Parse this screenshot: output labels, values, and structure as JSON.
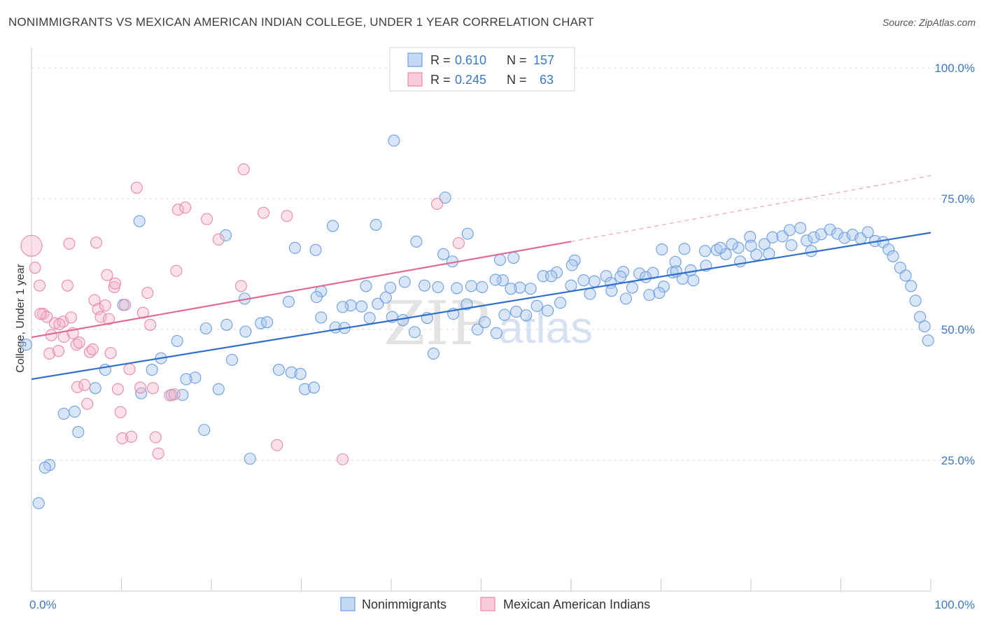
{
  "header": {
    "title": "NONIMMIGRANTS VS MEXICAN AMERICAN INDIAN COLLEGE, UNDER 1 YEAR CORRELATION CHART",
    "source": "Source: ZipAtlas.com"
  },
  "watermark": {
    "zip": "ZIP",
    "atlas": "atlas"
  },
  "legend": {
    "r_label": "R =",
    "n_label": "N =",
    "rows": [
      {
        "r": "0.610",
        "n": "157"
      },
      {
        "r": "0.245",
        "n": "63"
      }
    ]
  },
  "chart_data": {
    "type": "scatter",
    "title": "NONIMMIGRANTS VS MEXICAN AMERICAN INDIAN COLLEGE, UNDER 1 YEAR CORRELATION CHART",
    "xlabel": "",
    "ylabel": "College, Under 1 year",
    "xlim": [
      0,
      100
    ],
    "ylim": [
      0,
      100
    ],
    "x_tick_labels": [
      "0.0%",
      "100.0%"
    ],
    "y_tick_values": [
      25,
      50,
      75,
      100
    ],
    "y_tick_labels": [
      "25.0%",
      "50.0%",
      "75.0%",
      "100.0%"
    ],
    "grid": "horizontal-dashed",
    "legend_position": "bottom-center",
    "colors": {
      "Nonimmigrants": "#4a7fd4",
      "Mexican American Indians": "#e8709a"
    },
    "series": [
      {
        "name": "Nonimmigrants",
        "r": 0.61,
        "n": 157,
        "trend": {
          "x": [
            0,
            100
          ],
          "y": [
            40.5,
            68.5
          ]
        },
        "points": [
          [
            40.3,
            86.1
          ],
          [
            46.0,
            75.2
          ],
          [
            12.0,
            70.7
          ],
          [
            21.6,
            68.0
          ],
          [
            38.3,
            70.0
          ],
          [
            33.5,
            69.8
          ],
          [
            29.3,
            65.6
          ],
          [
            31.6,
            65.2
          ],
          [
            42.8,
            66.8
          ],
          [
            48.5,
            68.3
          ],
          [
            45.8,
            64.4
          ],
          [
            46.8,
            63.0
          ],
          [
            52.1,
            63.3
          ],
          [
            60.4,
            63.2
          ],
          [
            63.9,
            60.2
          ],
          [
            65.8,
            61.0
          ],
          [
            67.6,
            60.7
          ],
          [
            69.1,
            60.8
          ],
          [
            71.3,
            60.9
          ],
          [
            72.4,
            59.7
          ],
          [
            72.6,
            65.4
          ],
          [
            74.9,
            65.0
          ],
          [
            76.2,
            65.2
          ],
          [
            77.2,
            64.4
          ],
          [
            78.6,
            65.6
          ],
          [
            78.8,
            63.0
          ],
          [
            79.9,
            67.7
          ],
          [
            80.6,
            64.3
          ],
          [
            81.5,
            66.3
          ],
          [
            82.4,
            67.6
          ],
          [
            83.5,
            67.8
          ],
          [
            84.3,
            69.0
          ],
          [
            85.5,
            69.4
          ],
          [
            86.2,
            67.0
          ],
          [
            87.0,
            67.6
          ],
          [
            87.8,
            68.2
          ],
          [
            88.8,
            69.1
          ],
          [
            89.6,
            68.3
          ],
          [
            90.4,
            67.5
          ],
          [
            91.3,
            68.1
          ],
          [
            92.2,
            67.4
          ],
          [
            93.0,
            68.6
          ],
          [
            93.8,
            66.9
          ],
          [
            94.7,
            66.7
          ],
          [
            95.3,
            65.3
          ],
          [
            95.8,
            64.0
          ],
          [
            96.6,
            61.8
          ],
          [
            97.2,
            60.3
          ],
          [
            97.8,
            58.3
          ],
          [
            98.3,
            55.5
          ],
          [
            98.8,
            52.4
          ],
          [
            99.3,
            50.6
          ],
          [
            99.7,
            47.9
          ],
          [
            86.7,
            65.0
          ],
          [
            84.5,
            66.1
          ],
          [
            82.0,
            64.5
          ],
          [
            80.0,
            66.0
          ],
          [
            77.9,
            66.3
          ],
          [
            76.6,
            65.6
          ],
          [
            75.0,
            62.2
          ],
          [
            73.3,
            61.3
          ],
          [
            71.6,
            62.9
          ],
          [
            70.1,
            65.3
          ],
          [
            68.3,
            60.0
          ],
          [
            66.8,
            58.0
          ],
          [
            65.5,
            60.1
          ],
          [
            64.4,
            58.9
          ],
          [
            62.6,
            59.2
          ],
          [
            61.4,
            59.4
          ],
          [
            60.1,
            62.3
          ],
          [
            58.4,
            60.9
          ],
          [
            56.9,
            60.2
          ],
          [
            55.5,
            57.8
          ],
          [
            54.3,
            58.0
          ],
          [
            53.3,
            57.8
          ],
          [
            52.4,
            59.4
          ],
          [
            51.6,
            59.5
          ],
          [
            50.1,
            58.1
          ],
          [
            48.9,
            58.3
          ],
          [
            47.3,
            57.9
          ],
          [
            45.2,
            58.1
          ],
          [
            43.7,
            58.4
          ],
          [
            41.5,
            59.1
          ],
          [
            39.9,
            58.0
          ],
          [
            38.5,
            54.9
          ],
          [
            37.2,
            58.3
          ],
          [
            35.5,
            54.6
          ],
          [
            34.6,
            54.3
          ],
          [
            32.2,
            57.3
          ],
          [
            28.6,
            55.3
          ],
          [
            25.5,
            51.2
          ],
          [
            23.8,
            49.6
          ],
          [
            21.7,
            50.9
          ],
          [
            19.4,
            50.2
          ],
          [
            16.2,
            47.8
          ],
          [
            14.4,
            44.5
          ],
          [
            12.2,
            37.8
          ],
          [
            13.4,
            42.3
          ],
          [
            10.2,
            54.7
          ],
          [
            8.2,
            42.3
          ],
          [
            7.1,
            38.8
          ],
          [
            4.8,
            34.3
          ],
          [
            5.2,
            30.4
          ],
          [
            3.6,
            33.9
          ],
          [
            2.0,
            24.1
          ],
          [
            1.5,
            23.6
          ],
          [
            0.8,
            16.8
          ],
          [
            -0.6,
            47.1
          ],
          [
            20.8,
            38.6
          ],
          [
            18.2,
            40.8
          ],
          [
            17.2,
            40.5
          ],
          [
            16.8,
            37.5
          ],
          [
            15.6,
            37.5
          ],
          [
            28.9,
            41.8
          ],
          [
            30.4,
            38.6
          ],
          [
            31.4,
            38.9
          ],
          [
            32.2,
            52.3
          ],
          [
            33.8,
            50.4
          ],
          [
            34.8,
            50.3
          ],
          [
            36.7,
            54.4
          ],
          [
            37.6,
            52.2
          ],
          [
            39.4,
            56.1
          ],
          [
            40.1,
            52.4
          ],
          [
            41.3,
            51.8
          ],
          [
            42.6,
            49.5
          ],
          [
            44.0,
            52.2
          ],
          [
            44.7,
            45.4
          ],
          [
            46.9,
            53.0
          ],
          [
            48.4,
            54.8
          ],
          [
            49.6,
            50.0
          ],
          [
            50.4,
            51.4
          ],
          [
            51.7,
            49.3
          ],
          [
            52.6,
            52.8
          ],
          [
            53.9,
            53.4
          ],
          [
            55.0,
            52.7
          ],
          [
            56.2,
            54.5
          ],
          [
            57.4,
            53.6
          ],
          [
            58.8,
            55.1
          ],
          [
            60.0,
            58.4
          ],
          [
            62.1,
            56.8
          ],
          [
            64.5,
            57.4
          ],
          [
            66.1,
            55.9
          ],
          [
            68.7,
            56.6
          ],
          [
            70.3,
            58.2
          ],
          [
            71.7,
            61.1
          ],
          [
            73.6,
            59.4
          ],
          [
            23.7,
            55.9
          ],
          [
            22.3,
            44.2
          ],
          [
            19.2,
            30.8
          ],
          [
            24.3,
            25.3
          ],
          [
            26.2,
            51.4
          ],
          [
            27.5,
            42.3
          ],
          [
            29.9,
            41.5
          ],
          [
            31.7,
            56.2
          ],
          [
            53.6,
            63.7
          ],
          [
            57.8,
            60.2
          ],
          [
            69.8,
            57.0
          ]
        ]
      },
      {
        "name": "Mexican American Indians",
        "r": 0.245,
        "n": 63,
        "trend": {
          "x": [
            0,
            60
          ],
          "y": [
            48.5,
            66.8
          ]
        },
        "trend_extension": {
          "x": [
            60,
            100
          ],
          "y": [
            66.8,
            79.4
          ]
        },
        "points": [
          [
            0.0,
            66.0
          ],
          [
            0.4,
            61.8
          ],
          [
            0.9,
            58.4
          ],
          [
            1.3,
            53.0
          ],
          [
            1.7,
            52.4
          ],
          [
            2.2,
            48.9
          ],
          [
            2.0,
            45.4
          ],
          [
            2.6,
            51.2
          ],
          [
            3.0,
            45.9
          ],
          [
            3.5,
            51.5
          ],
          [
            3.6,
            48.6
          ],
          [
            4.0,
            58.4
          ],
          [
            4.2,
            66.4
          ],
          [
            4.4,
            52.3
          ],
          [
            4.6,
            49.3
          ],
          [
            5.0,
            47.1
          ],
          [
            5.3,
            47.5
          ],
          [
            5.1,
            39.0
          ],
          [
            5.9,
            39.4
          ],
          [
            6.2,
            35.8
          ],
          [
            6.5,
            45.7
          ],
          [
            6.8,
            46.2
          ],
          [
            7.0,
            55.6
          ],
          [
            7.2,
            66.6
          ],
          [
            7.4,
            53.9
          ],
          [
            7.7,
            52.4
          ],
          [
            8.2,
            54.6
          ],
          [
            8.4,
            60.4
          ],
          [
            8.6,
            52.0
          ],
          [
            9.2,
            58.1
          ],
          [
            9.3,
            58.8
          ],
          [
            9.6,
            38.6
          ],
          [
            9.9,
            34.2
          ],
          [
            10.1,
            29.2
          ],
          [
            10.4,
            54.7
          ],
          [
            10.9,
            42.4
          ],
          [
            11.1,
            29.5
          ],
          [
            11.7,
            77.1
          ],
          [
            12.1,
            38.9
          ],
          [
            12.4,
            53.2
          ],
          [
            12.9,
            57.0
          ],
          [
            13.2,
            50.9
          ],
          [
            13.5,
            38.8
          ],
          [
            13.8,
            29.4
          ],
          [
            14.1,
            26.3
          ],
          [
            15.4,
            37.4
          ],
          [
            15.9,
            37.6
          ],
          [
            16.1,
            61.2
          ],
          [
            16.3,
            72.9
          ],
          [
            17.1,
            73.3
          ],
          [
            19.5,
            71.1
          ],
          [
            20.8,
            67.2
          ],
          [
            23.3,
            58.3
          ],
          [
            23.6,
            80.6
          ],
          [
            25.8,
            72.3
          ],
          [
            27.3,
            27.9
          ],
          [
            28.4,
            71.7
          ],
          [
            34.6,
            25.2
          ],
          [
            45.1,
            74.0
          ],
          [
            47.5,
            66.5
          ],
          [
            3.1,
            51.0
          ],
          [
            1.0,
            53.0
          ],
          [
            8.8,
            45.5
          ]
        ]
      }
    ]
  }
}
